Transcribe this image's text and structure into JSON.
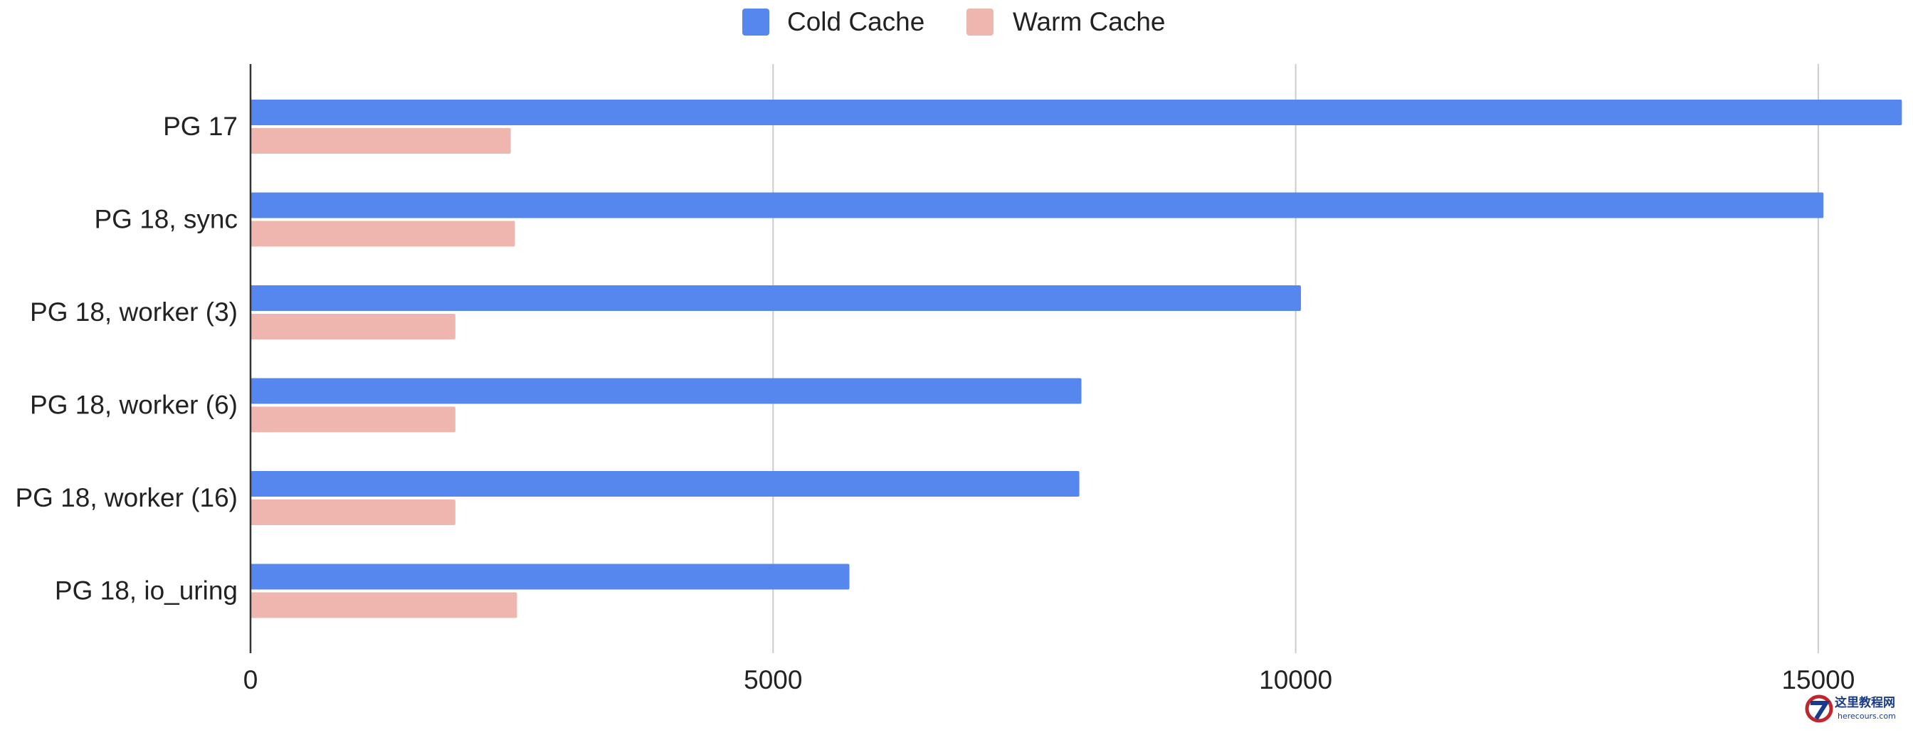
{
  "chart_data": {
    "type": "bar",
    "orientation": "horizontal",
    "title": "",
    "xlabel": "",
    "ylabel": "",
    "categories": [
      "PG 17",
      "PG 18, sync",
      "PG 18, worker (3)",
      "PG 18, worker (6)",
      "PG 18, worker (16)",
      "PG 18, io_uring"
    ],
    "series": [
      {
        "name": "Cold Cache",
        "color": "#5587ee",
        "values": [
          15800,
          15050,
          10050,
          7950,
          7930,
          5730
        ]
      },
      {
        "name": "Warm Cache",
        "color": "#eeb6ae",
        "values": [
          2490,
          2530,
          1960,
          1960,
          1960,
          2550
        ]
      }
    ],
    "xlim": [
      0,
      15800
    ],
    "xticks": [
      0,
      5000,
      10000,
      15000
    ],
    "xtick_labels": [
      "0",
      "5000",
      "10000",
      "15000"
    ],
    "grid": true,
    "legend_position": "top-center"
  },
  "watermark": {
    "text_cn": "这里教程网",
    "text_en": "herecours.com"
  }
}
